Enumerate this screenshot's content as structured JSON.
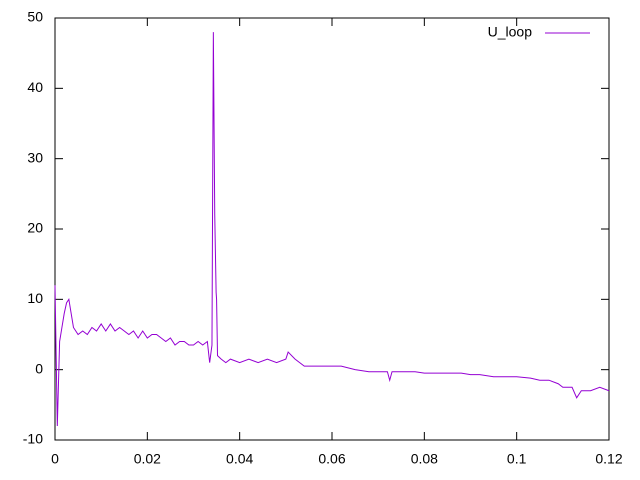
{
  "chart_data": {
    "type": "line",
    "x": [
      0,
      0.0005,
      0.001,
      0.0015,
      0.002,
      0.0025,
      0.003,
      0.0035,
      0.004,
      0.005,
      0.006,
      0.007,
      0.008,
      0.009,
      0.01,
      0.011,
      0.012,
      0.013,
      0.014,
      0.015,
      0.016,
      0.017,
      0.018,
      0.019,
      0.02,
      0.021,
      0.022,
      0.023,
      0.024,
      0.025,
      0.026,
      0.027,
      0.028,
      0.029,
      0.03,
      0.031,
      0.032,
      0.033,
      0.0335,
      0.034,
      0.0343,
      0.0346,
      0.0349,
      0.035,
      0.0352,
      0.036,
      0.037,
      0.038,
      0.04,
      0.042,
      0.044,
      0.046,
      0.048,
      0.05,
      0.0505,
      0.052,
      0.054,
      0.056,
      0.058,
      0.06,
      0.062,
      0.065,
      0.068,
      0.07,
      0.072,
      0.0725,
      0.073,
      0.076,
      0.078,
      0.08,
      0.082,
      0.085,
      0.088,
      0.09,
      0.092,
      0.095,
      0.098,
      0.1,
      0.103,
      0.105,
      0.107,
      0.109,
      0.11,
      0.112,
      0.113,
      0.114,
      0.116,
      0.118,
      0.12
    ],
    "series": [
      {
        "name": "U_loop",
        "color": "#9400d3",
        "values": [
          12,
          -8,
          4,
          6,
          8,
          9.5,
          10,
          8,
          6,
          5,
          5.5,
          5,
          6,
          5.5,
          6.5,
          5.5,
          6.5,
          5.5,
          6,
          5.5,
          5,
          5.5,
          4.5,
          5.5,
          4.5,
          5,
          5,
          4.5,
          4,
          4.5,
          3.5,
          4,
          4,
          3.5,
          3.5,
          4,
          3.5,
          4,
          1,
          3.5,
          48,
          22,
          11,
          10,
          2,
          1.5,
          1,
          1.5,
          1,
          1.5,
          1,
          1.5,
          1,
          1.5,
          2.5,
          1.5,
          0.5,
          0.5,
          0.5,
          0.5,
          0.5,
          0,
          -0.3,
          -0.3,
          -0.3,
          -1.5,
          -0.3,
          -0.3,
          -0.3,
          -0.5,
          -0.5,
          -0.5,
          -0.5,
          -0.7,
          -0.7,
          -1,
          -1,
          -1,
          -1.2,
          -1.5,
          -1.5,
          -2,
          -2.5,
          -2.5,
          -4,
          -3,
          -3,
          -2.5,
          -3
        ]
      }
    ],
    "xlim": [
      0,
      0.12
    ],
    "xticks": [
      0,
      0.02,
      0.04,
      0.06,
      0.08,
      0.1,
      0.12
    ],
    "ylim": [
      -10,
      50
    ],
    "yticks": [
      -10,
      0,
      10,
      20,
      30,
      40,
      50
    ],
    "legend": "top-right"
  }
}
